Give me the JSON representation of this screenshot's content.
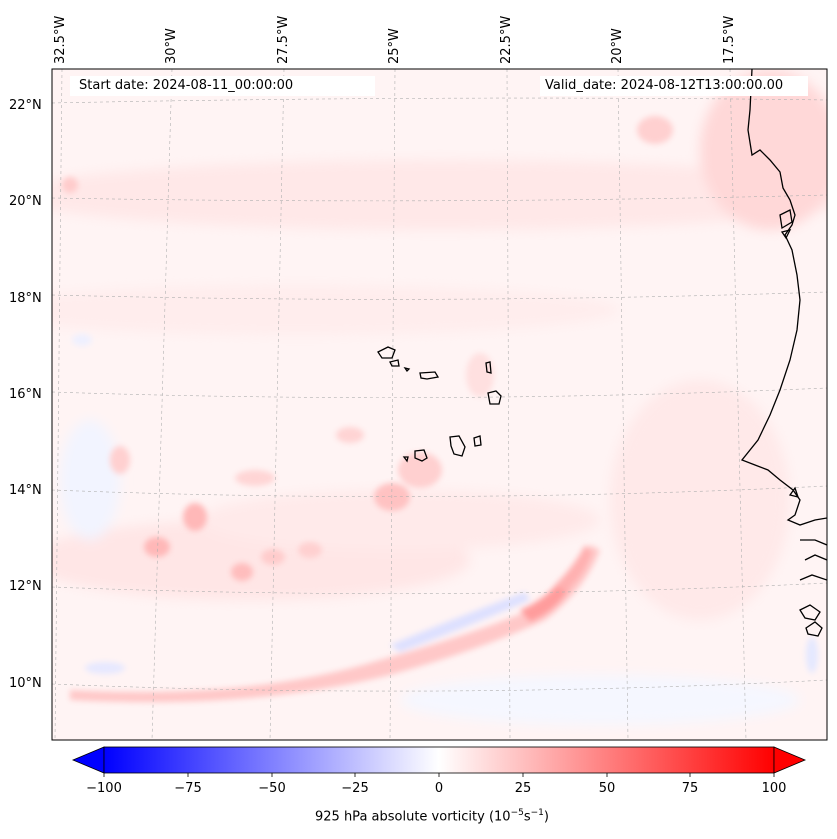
{
  "header": {
    "start_date": "Start date: 2024-08-11_00:00:00",
    "valid_date": "Valid_date: 2024-08-12T13:00:00.00"
  },
  "lon_labels": [
    "32.5°W",
    "30°W",
    "27.5°W",
    "25°W",
    "22.5°W",
    "20°W",
    "17.5°W"
  ],
  "lat_labels": [
    "22°N",
    "20°N",
    "18°N",
    "16°N",
    "14°N",
    "12°N",
    "10°N"
  ],
  "colorbar": {
    "ticks": [
      "−100",
      "−75",
      "−50",
      "−25",
      "0",
      "25",
      "50",
      "75",
      "100"
    ],
    "label": "925 hPa absolute vorticity (10",
    "label_exp1": "−5",
    "label_mid": "s",
    "label_exp2": "−1",
    "label_end": ")",
    "min": -100,
    "max": 100,
    "colors": {
      "low": "#0000ff",
      "mid": "#ffffff",
      "high": "#ff0000"
    }
  },
  "features": {
    "coastline_color": "#000000",
    "gridline_color": "#b0b0b0"
  }
}
